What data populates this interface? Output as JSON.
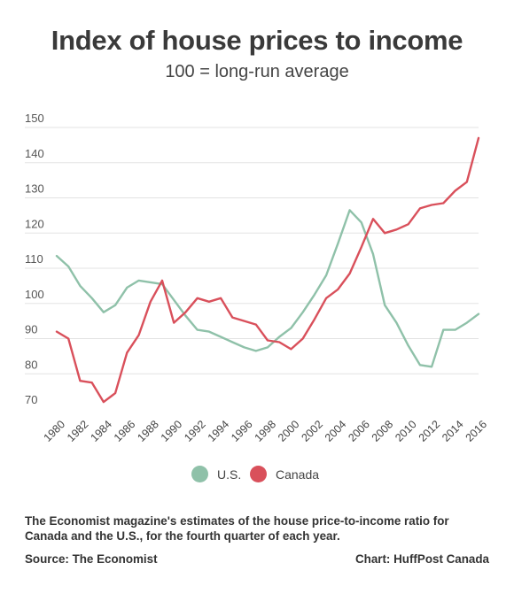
{
  "chart_data": {
    "type": "line",
    "title": "Index of house prices to income",
    "subtitle": "100 = long-run average",
    "x": [
      1980,
      1981,
      1982,
      1983,
      1984,
      1985,
      1986,
      1987,
      1988,
      1989,
      1990,
      1991,
      1992,
      1993,
      1994,
      1995,
      1996,
      1997,
      1998,
      1999,
      2000,
      2001,
      2002,
      2003,
      2004,
      2005,
      2006,
      2007,
      2008,
      2009,
      2010,
      2011,
      2012,
      2013,
      2014,
      2015,
      2016
    ],
    "x_tick_labels": [
      "1980",
      "1982",
      "1984",
      "1986",
      "1988",
      "1990",
      "1992",
      "1994",
      "1996",
      "1998",
      "2000",
      "2002",
      "2004",
      "2006",
      "2008",
      "2010",
      "2012",
      "2014",
      "2016"
    ],
    "y_ticks": [
      70,
      80,
      90,
      100,
      110,
      120,
      130,
      140,
      150
    ],
    "ylim": [
      70,
      150
    ],
    "grid": true,
    "legend_position": "bottom-center",
    "series": [
      {
        "name": "U.S.",
        "color": "#8fc1a9",
        "values": [
          113.5,
          110.5,
          105,
          101.5,
          97.5,
          99.5,
          104.5,
          106.5,
          106,
          105.5,
          101,
          96.5,
          92.5,
          92,
          90.5,
          89,
          87.5,
          86.5,
          87.5,
          90.5,
          93,
          97.5,
          102.5,
          108,
          117,
          126.5,
          123,
          114,
          99.5,
          94.5,
          88,
          82.5,
          82,
          92.5,
          92.5,
          94.5,
          97
        ]
      },
      {
        "name": "Canada",
        "color": "#d9505b",
        "values": [
          92,
          90,
          78,
          77.5,
          72,
          74.5,
          86,
          91,
          100.5,
          106.5,
          94.5,
          97.5,
          101.5,
          100.5,
          101.5,
          96,
          95,
          94,
          89.5,
          89,
          87,
          90,
          95.5,
          101.5,
          104,
          108.5,
          116,
          124,
          120,
          121,
          122.5,
          127,
          128,
          128.5,
          132,
          134.5,
          147
        ]
      }
    ]
  },
  "caption": "The Economist magazine's estimates of the house price-to-income ratio for Canada and the U.S., for the fourth quarter of each year.",
  "source": "Source: The Economist",
  "credit": "Chart: HuffPost Canada"
}
